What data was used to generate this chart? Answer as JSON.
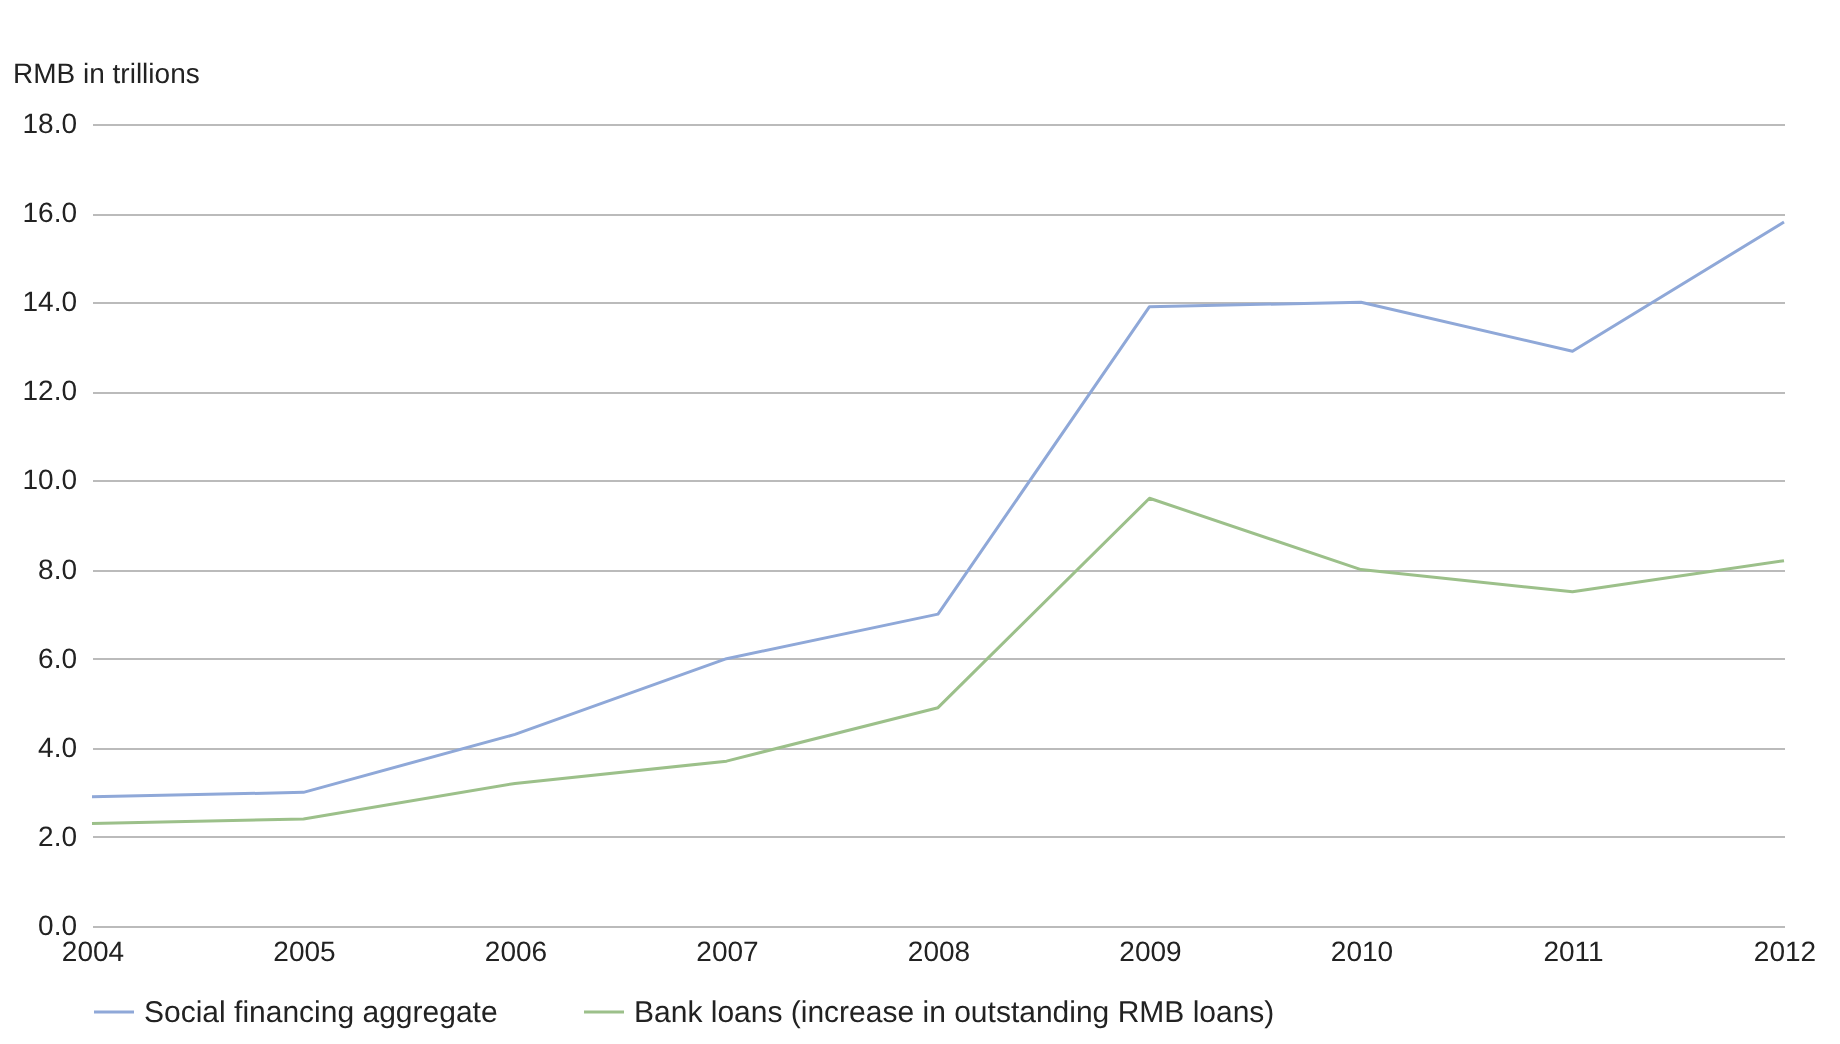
{
  "chart_data": {
    "type": "line",
    "ylabel": "RMB in trillions",
    "x": [
      2004,
      2005,
      2006,
      2007,
      2008,
      2009,
      2010,
      2011,
      2012
    ],
    "series": [
      {
        "name": "Social financing aggregate",
        "color": "#8fa8d8",
        "values": [
          2.9,
          3.0,
          4.3,
          6.0,
          7.0,
          13.9,
          14.0,
          12.9,
          15.8
        ]
      },
      {
        "name": "Bank loans (increase in outstanding RMB loans)",
        "color": "#9cc08a",
        "values": [
          2.3,
          2.4,
          3.2,
          3.7,
          4.9,
          9.6,
          8.0,
          7.5,
          8.2
        ]
      }
    ],
    "xlim": [
      2004,
      2012
    ],
    "xticks": [
      2004,
      2005,
      2006,
      2007,
      2008,
      2009,
      2010,
      2011,
      2012
    ],
    "ylim": [
      0,
      18
    ],
    "yticks": [
      {
        "value": 0,
        "label": "0.0"
      },
      {
        "value": 2,
        "label": "2.0"
      },
      {
        "value": 4,
        "label": "4.0"
      },
      {
        "value": 6,
        "label": "6.0"
      },
      {
        "value": 8,
        "label": "8.0"
      },
      {
        "value": 10,
        "label": "10.0"
      },
      {
        "value": 12,
        "label": "12.0"
      },
      {
        "value": 14,
        "label": "14.0"
      },
      {
        "value": 16,
        "label": "16.0"
      },
      {
        "value": 18,
        "label": "18.0"
      }
    ],
    "grid": "y",
    "legend": "bottom",
    "marker": "none",
    "line_style": "solid"
  }
}
